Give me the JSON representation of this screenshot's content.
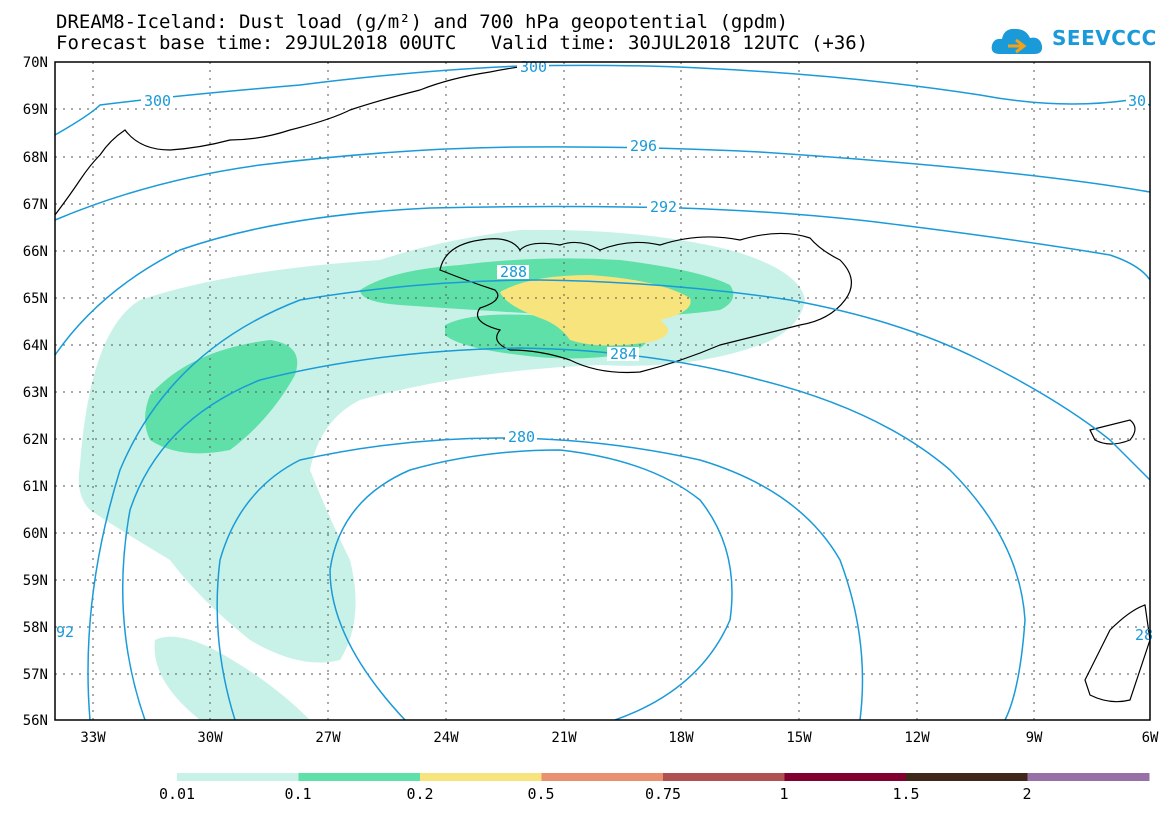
{
  "header": {
    "title_line1": "DREAM8-Iceland: Dust load (g/m²) and 700 hPa geopotential (gpdm)",
    "title_line2": "Forecast base time: 29JUL2018 00UTC   Valid time: 30JUL2018 12UTC (+36)"
  },
  "logo": {
    "text": "SEEVCCC",
    "icon": "cloud-logo-icon",
    "color": "#1a9ad8"
  },
  "map": {
    "lat_labels": [
      "70N",
      "69N",
      "68N",
      "67N",
      "66N",
      "65N",
      "64N",
      "63N",
      "62N",
      "61N",
      "60N",
      "59N",
      "58N",
      "57N",
      "56N"
    ],
    "lon_labels": [
      "33W",
      "30W",
      "27W",
      "24W",
      "21W",
      "18W",
      "15W",
      "12W",
      "9W",
      "6W"
    ],
    "contour_color": "#1a9ad8",
    "contour_labels": [
      {
        "value": "300",
        "name": "contour-label-300-top"
      },
      {
        "value": "300",
        "name": "contour-label-300-left"
      },
      {
        "value": "30",
        "name": "contour-label-30-right"
      },
      {
        "value": "296",
        "name": "contour-label-296"
      },
      {
        "value": "292",
        "name": "contour-label-292"
      },
      {
        "value": "288",
        "name": "contour-label-288"
      },
      {
        "value": "284",
        "name": "contour-label-284"
      },
      {
        "value": "280",
        "name": "contour-label-280"
      },
      {
        "value": "92",
        "name": "contour-label-92-left"
      },
      {
        "value": "28",
        "name": "contour-label-28-right"
      }
    ]
  },
  "colorbar": {
    "colors": [
      "#c8f2e8",
      "#5ee0a8",
      "#f8e47c",
      "#e89070",
      "#b05050",
      "#800030",
      "#402818",
      "#9870a8"
    ],
    "labels": [
      "0.01",
      "0.1",
      "0.2",
      "0.5",
      "0.75",
      "1",
      "1.5",
      "2"
    ]
  }
}
